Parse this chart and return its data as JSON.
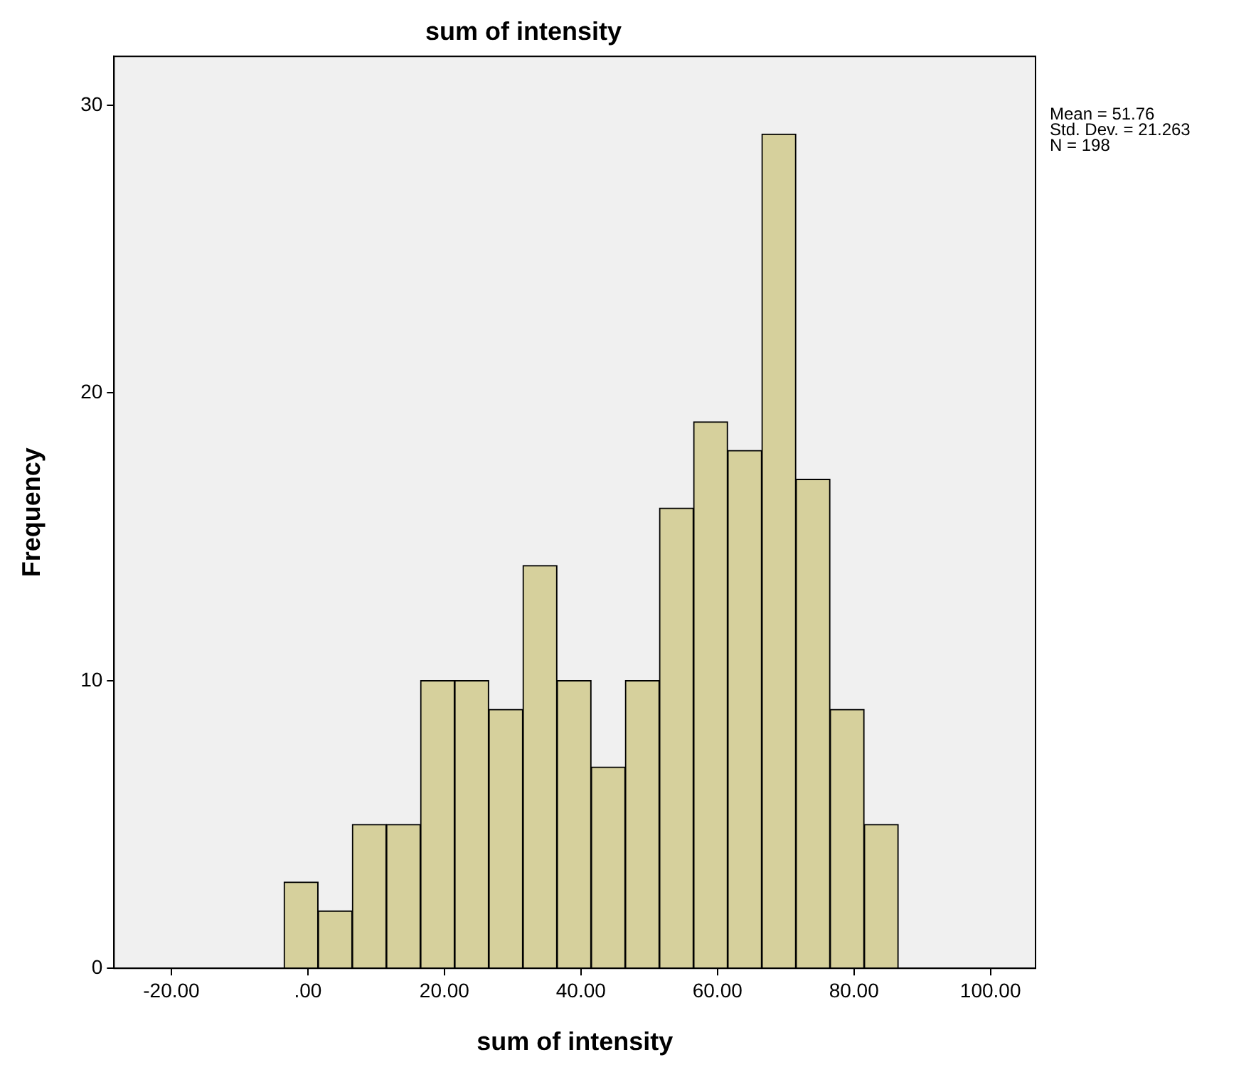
{
  "chart_data": {
    "type": "histogram",
    "title": "sum of intensity",
    "xlabel": "sum of intensity",
    "ylabel": "Frequency",
    "bins": [
      -3.5,
      1.5,
      6.5,
      11.5,
      16.5,
      21.5,
      26.5,
      31.5,
      36.5,
      41.5,
      46.5,
      51.5,
      56.5,
      61.5,
      66.5,
      71.5,
      76.5,
      81.5,
      86.5
    ],
    "values": [
      3,
      2,
      5,
      5,
      10,
      10,
      9,
      14,
      10,
      7,
      10,
      16,
      19,
      18,
      29,
      17,
      9,
      5
    ],
    "color": "#d6d09c",
    "xlim": [
      -28.4,
      106.6
    ],
    "xticks": [
      {
        "value": -20,
        "label": "-20.00"
      },
      {
        "value": 0,
        "label": ".00"
      },
      {
        "value": 20,
        "label": "20.00"
      },
      {
        "value": 40,
        "label": "40.00"
      },
      {
        "value": 60,
        "label": "60.00"
      },
      {
        "value": 80,
        "label": "80.00"
      },
      {
        "value": 100,
        "label": "100.00"
      }
    ],
    "ylim": [
      0,
      31.7
    ],
    "yticks": [
      0,
      10,
      20,
      30
    ],
    "grid": false,
    "legend": false,
    "annotations": [
      "Mean = 51.76",
      "Std. Dev. = 21.263",
      "N = 198"
    ]
  }
}
